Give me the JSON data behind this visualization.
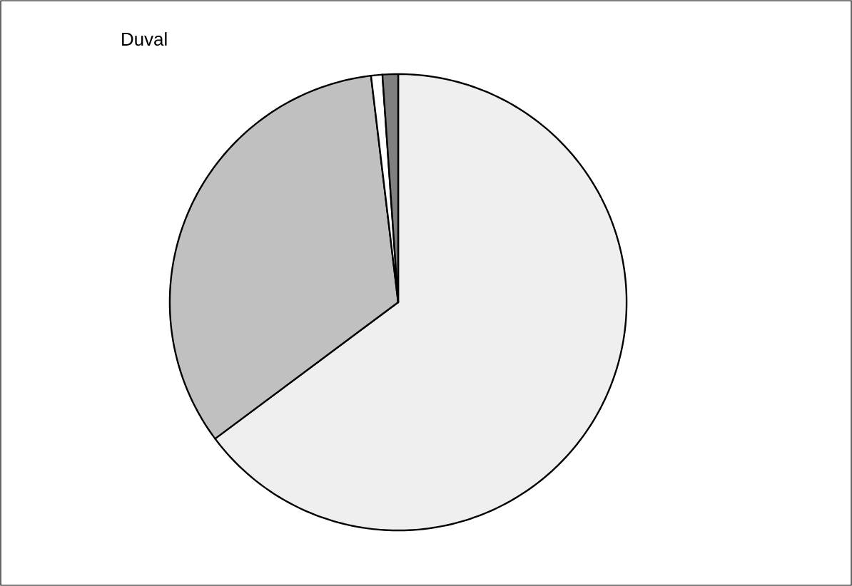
{
  "chart_data": {
    "type": "pie",
    "title": "Duval",
    "categories": [
      null,
      null,
      null,
      null
    ],
    "values": [
      64.8,
      33.3,
      0.8,
      1.1
    ],
    "colors": [
      "#efefef",
      "#c0c0c0",
      "#ffffff",
      "#808080"
    ]
  }
}
